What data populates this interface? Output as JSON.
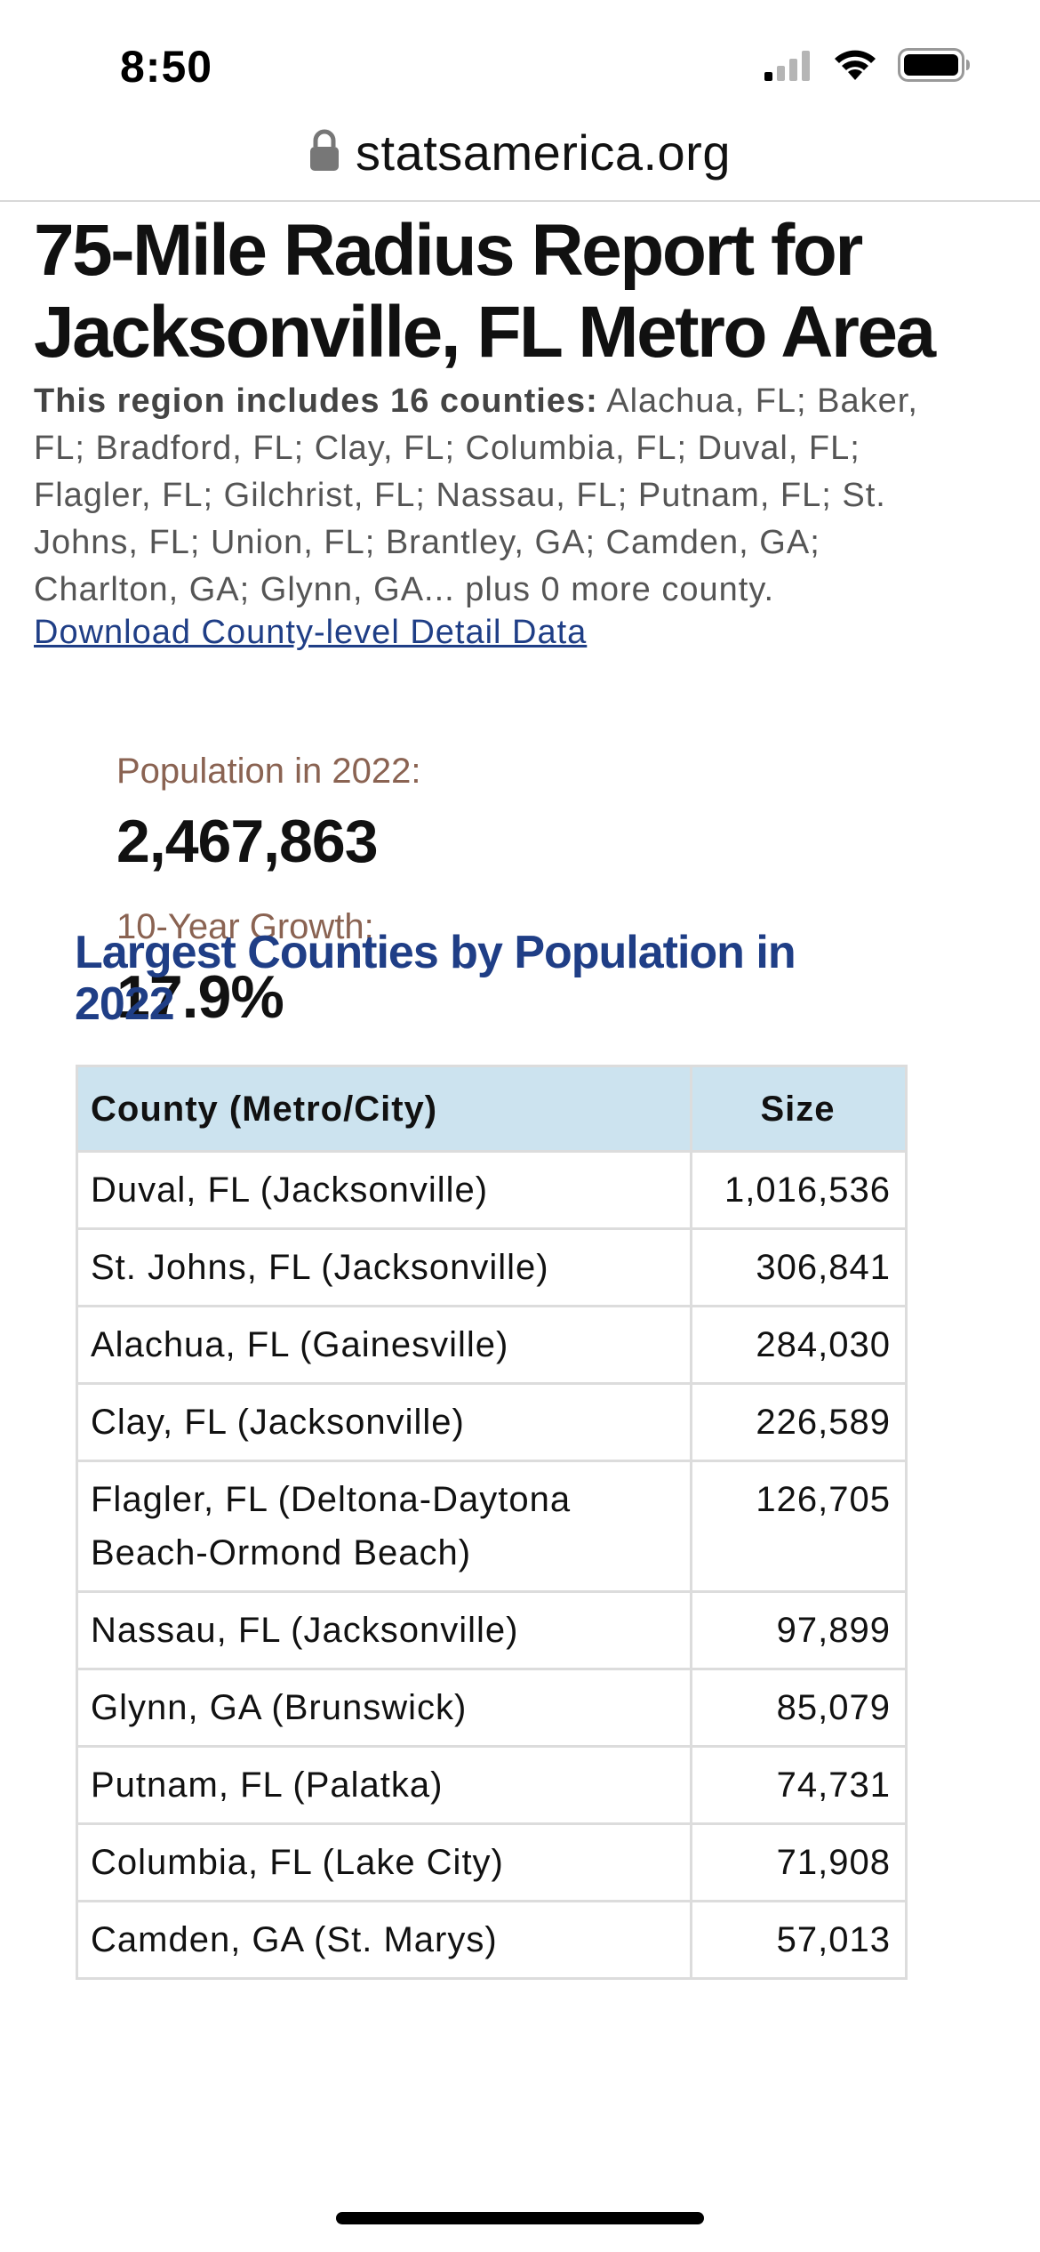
{
  "status_bar": {
    "time": "8:50"
  },
  "browser": {
    "url": "statsamerica.org"
  },
  "report": {
    "title": "75-Mile Radius Report for Jacksonville, FL Metro Area",
    "region_lead": "This region includes 16 counties:",
    "region_counties": " Alachua, FL; Baker, FL; Bradford, FL; Clay, FL; Columbia, FL; Duval, FL; Flagler, FL; Gilchrist, FL; Nassau, FL; Putnam, FL; St. Johns, FL; Union, FL; Brantley, GA; Camden, GA; Charlton, GA; Glynn, GA... plus 0 more county.",
    "download_link": "Download County-level Detail Data"
  },
  "stats": {
    "population_label": "Population in 2022:",
    "population_value": "2,467,863",
    "growth_label": "10-Year Growth:",
    "growth_value": "17.9%"
  },
  "largest_counties": {
    "heading": "Largest Counties by Population in 2022",
    "columns": [
      "County (Metro/City)",
      "Size"
    ],
    "rows": [
      {
        "county": "Duval, FL (Jacksonville)",
        "size": "1,016,536"
      },
      {
        "county": "St. Johns, FL (Jacksonville)",
        "size": "306,841"
      },
      {
        "county": "Alachua, FL (Gainesville)",
        "size": "284,030"
      },
      {
        "county": "Clay, FL (Jacksonville)",
        "size": "226,589"
      },
      {
        "county": "Flagler, FL (Deltona-Daytona Beach-Ormond Beach)",
        "size": "126,705"
      },
      {
        "county": "Nassau, FL (Jacksonville)",
        "size": "97,899"
      },
      {
        "county": "Glynn, GA (Brunswick)",
        "size": "85,079"
      },
      {
        "county": "Putnam, FL (Palatka)",
        "size": "74,731"
      },
      {
        "county": "Columbia, FL (Lake City)",
        "size": "71,908"
      },
      {
        "county": "Camden, GA (St. Marys)",
        "size": "57,013"
      }
    ]
  },
  "colors": {
    "heading_blue": "#1f3e86",
    "label_brown": "#8a6352",
    "table_header_bg": "#cce3ef"
  },
  "icons": [
    "cellular-signal-icon",
    "wifi-icon",
    "battery-icon",
    "lock-icon"
  ]
}
